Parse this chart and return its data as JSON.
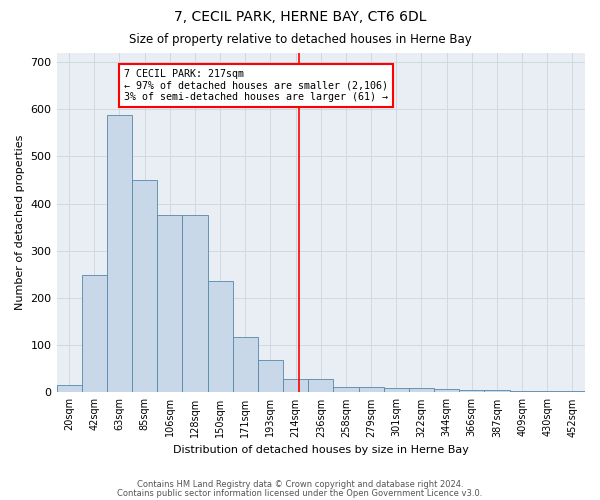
{
  "title": "7, CECIL PARK, HERNE BAY, CT6 6DL",
  "subtitle": "Size of property relative to detached houses in Herne Bay",
  "xlabel": "Distribution of detached houses by size in Herne Bay",
  "ylabel": "Number of detached properties",
  "categories": [
    "20sqm",
    "42sqm",
    "63sqm",
    "85sqm",
    "106sqm",
    "128sqm",
    "150sqm",
    "171sqm",
    "193sqm",
    "214sqm",
    "236sqm",
    "258sqm",
    "279sqm",
    "301sqm",
    "322sqm",
    "344sqm",
    "366sqm",
    "387sqm",
    "409sqm",
    "430sqm",
    "452sqm"
  ],
  "bar_heights": [
    15,
    248,
    588,
    450,
    375,
    375,
    235,
    118,
    68,
    28,
    28,
    12,
    12,
    10,
    10,
    7,
    5,
    5,
    3,
    3,
    2
  ],
  "bar_color": "#c8d8e8",
  "bar_edge_color": "#5588aa",
  "grid_color": "#d0d8e0",
  "ax_bg_color": "#e8eef4",
  "vline_x_index": 9.15,
  "vline_color": "red",
  "annotation_text": "7 CECIL PARK: 217sqm\n← 97% of detached houses are smaller (2,106)\n3% of semi-detached houses are larger (61) →",
  "annotation_box_color": "white",
  "annotation_box_edge": "red",
  "ylim": [
    0,
    720
  ],
  "yticks": [
    0,
    100,
    200,
    300,
    400,
    500,
    600,
    700
  ],
  "footer_line1": "Contains HM Land Registry data © Crown copyright and database right 2024.",
  "footer_line2": "Contains public sector information licensed under the Open Government Licence v3.0."
}
